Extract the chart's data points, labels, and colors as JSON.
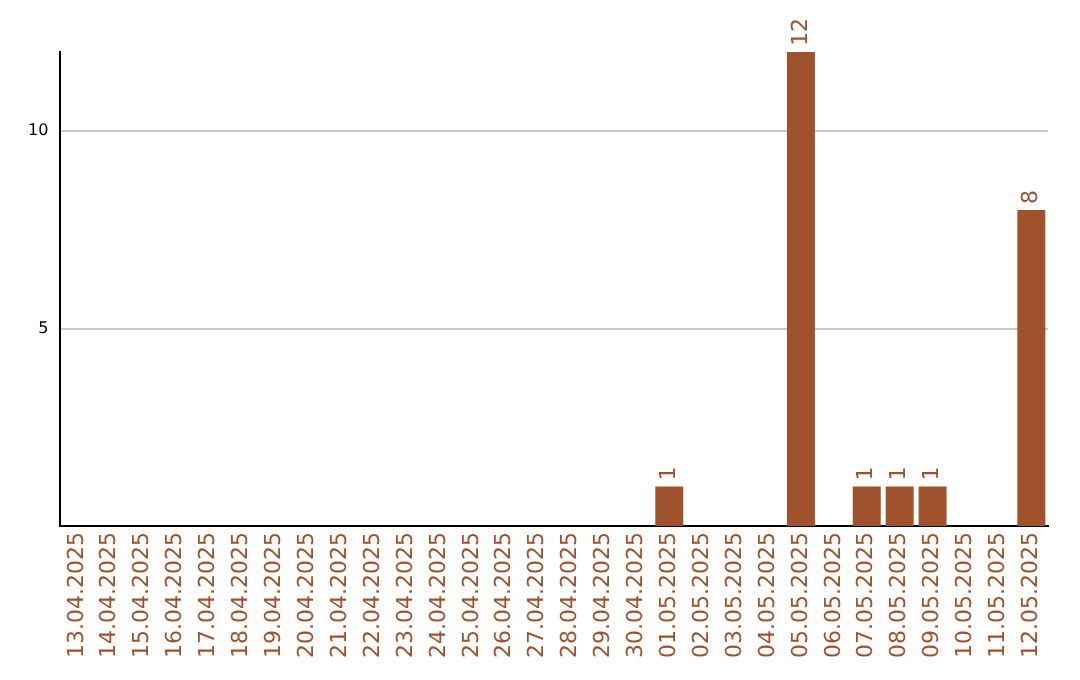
{
  "chart_data": {
    "type": "bar",
    "categories": [
      "13.04.2025",
      "14.04.2025",
      "15.04.2025",
      "16.04.2025",
      "17.04.2025",
      "18.04.2025",
      "19.04.2025",
      "20.04.2025",
      "21.04.2025",
      "22.04.2025",
      "23.04.2025",
      "24.04.2025",
      "25.04.2025",
      "26.04.2025",
      "27.04.2025",
      "28.04.2025",
      "29.04.2025",
      "30.04.2025",
      "01.05.2025",
      "02.05.2025",
      "03.05.2025",
      "04.05.2025",
      "05.05.2025",
      "06.05.2025",
      "07.05.2025",
      "08.05.2025",
      "09.05.2025",
      "10.05.2025",
      "11.05.2025",
      "12.05.2025"
    ],
    "values": [
      0,
      0,
      0,
      0,
      0,
      0,
      0,
      0,
      0,
      0,
      0,
      0,
      0,
      0,
      0,
      0,
      0,
      0,
      1,
      0,
      0,
      0,
      12,
      0,
      1,
      1,
      1,
      0,
      0,
      8
    ],
    "value_labels": [
      null,
      null,
      null,
      null,
      null,
      null,
      null,
      null,
      null,
      null,
      null,
      null,
      null,
      null,
      null,
      null,
      null,
      null,
      "1",
      null,
      null,
      null,
      "12",
      null,
      "1",
      "1",
      "1",
      null,
      null,
      "8"
    ],
    "color": "#a0522d",
    "ylim": [
      0,
      12
    ],
    "yticks": [
      5,
      10
    ],
    "grid": "y"
  }
}
